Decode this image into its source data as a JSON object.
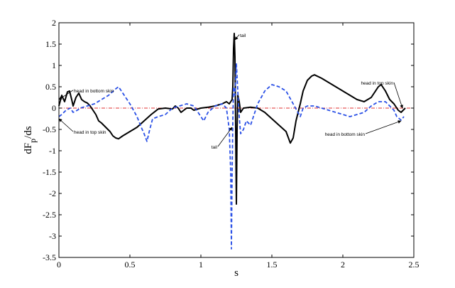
{
  "chart_data": {
    "type": "line",
    "title": "",
    "xlabel": "s",
    "ylabel_main": "dF",
    "ylabel_sub": "p",
    "ylabel_tail": "/ds",
    "xlim": [
      0,
      2.5
    ],
    "ylim": [
      -3.5,
      2
    ],
    "x_ticks": [
      0,
      0.5,
      1,
      1.5,
      2,
      2.5
    ],
    "x_tick_labels": [
      "0",
      "0.5",
      "1",
      "1.5",
      "2",
      "2.5"
    ],
    "y_ticks": [
      2,
      1.5,
      1,
      0.5,
      0,
      -0.5,
      -1,
      -1.5,
      -2,
      -2.5,
      -3,
      -3.5
    ],
    "y_tick_labels": [
      "2",
      "1.5",
      "1",
      "0.5",
      "0",
      "-0.5",
      "-1",
      "-1.5",
      "-2",
      "-2.5",
      "-3",
      "-3.5"
    ],
    "grid": false,
    "reference_line": {
      "y": 0,
      "color": "#e03030",
      "style": "dash-dot"
    },
    "series": [
      {
        "color": "#000000",
        "style": "solid",
        "points": [
          [
            0.0,
            0.05
          ],
          [
            0.02,
            0.3
          ],
          [
            0.04,
            0.15
          ],
          [
            0.06,
            0.38
          ],
          [
            0.075,
            0.4
          ],
          [
            0.09,
            0.2
          ],
          [
            0.1,
            0.05
          ],
          [
            0.12,
            0.25
          ],
          [
            0.14,
            0.35
          ],
          [
            0.16,
            0.2
          ],
          [
            0.18,
            0.15
          ],
          [
            0.2,
            0.12
          ],
          [
            0.22,
            0.05
          ],
          [
            0.24,
            -0.05
          ],
          [
            0.26,
            -0.15
          ],
          [
            0.28,
            -0.3
          ],
          [
            0.3,
            -0.35
          ],
          [
            0.33,
            -0.45
          ],
          [
            0.36,
            -0.55
          ],
          [
            0.38,
            -0.65
          ],
          [
            0.4,
            -0.7
          ],
          [
            0.42,
            -0.72
          ],
          [
            0.45,
            -0.65
          ],
          [
            0.5,
            -0.55
          ],
          [
            0.55,
            -0.45
          ],
          [
            0.6,
            -0.3
          ],
          [
            0.65,
            -0.15
          ],
          [
            0.7,
            -0.02
          ],
          [
            0.75,
            0.0
          ],
          [
            0.8,
            -0.02
          ],
          [
            0.82,
            0.05
          ],
          [
            0.84,
            0.0
          ],
          [
            0.86,
            -0.1
          ],
          [
            0.88,
            -0.05
          ],
          [
            0.9,
            0.0
          ],
          [
            0.93,
            0.0
          ],
          [
            0.95,
            -0.05
          ],
          [
            1.0,
            0.0
          ],
          [
            1.05,
            0.02
          ],
          [
            1.1,
            0.05
          ],
          [
            1.15,
            0.1
          ],
          [
            1.18,
            0.15
          ],
          [
            1.2,
            0.1
          ],
          [
            1.22,
            0.2
          ],
          [
            1.225,
            0.5
          ],
          [
            1.23,
            1.4
          ],
          [
            1.235,
            1.75
          ],
          [
            1.24,
            1.2
          ],
          [
            1.245,
            -0.5
          ],
          [
            1.25,
            -2.25
          ],
          [
            1.255,
            -0.5
          ],
          [
            1.26,
            0.3
          ],
          [
            1.27,
            0.15
          ],
          [
            1.28,
            -0.1
          ],
          [
            1.3,
            0.0
          ],
          [
            1.35,
            0.02
          ],
          [
            1.4,
            0.0
          ],
          [
            1.45,
            -0.1
          ],
          [
            1.5,
            -0.25
          ],
          [
            1.55,
            -0.4
          ],
          [
            1.6,
            -0.55
          ],
          [
            1.63,
            -0.82
          ],
          [
            1.65,
            -0.7
          ],
          [
            1.67,
            -0.3
          ],
          [
            1.7,
            0.1
          ],
          [
            1.72,
            0.4
          ],
          [
            1.75,
            0.65
          ],
          [
            1.78,
            0.75
          ],
          [
            1.8,
            0.78
          ],
          [
            1.85,
            0.7
          ],
          [
            1.9,
            0.6
          ],
          [
            1.95,
            0.5
          ],
          [
            2.0,
            0.4
          ],
          [
            2.05,
            0.3
          ],
          [
            2.1,
            0.2
          ],
          [
            2.15,
            0.15
          ],
          [
            2.2,
            0.25
          ],
          [
            2.25,
            0.5
          ],
          [
            2.27,
            0.55
          ],
          [
            2.3,
            0.4
          ],
          [
            2.33,
            0.2
          ],
          [
            2.36,
            0.1
          ],
          [
            2.39,
            -0.05
          ],
          [
            2.41,
            -0.1
          ],
          [
            2.44,
            0.0
          ]
        ]
      },
      {
        "color": "#2a50e6",
        "style": "dashed",
        "points": [
          [
            0.0,
            -0.2
          ],
          [
            0.02,
            -0.15
          ],
          [
            0.05,
            -0.05
          ],
          [
            0.08,
            0.0
          ],
          [
            0.1,
            -0.1
          ],
          [
            0.13,
            -0.05
          ],
          [
            0.15,
            0.0
          ],
          [
            0.2,
            0.05
          ],
          [
            0.25,
            0.1
          ],
          [
            0.3,
            0.2
          ],
          [
            0.35,
            0.3
          ],
          [
            0.4,
            0.45
          ],
          [
            0.42,
            0.5
          ],
          [
            0.45,
            0.35
          ],
          [
            0.48,
            0.2
          ],
          [
            0.5,
            0.1
          ],
          [
            0.55,
            -0.2
          ],
          [
            0.58,
            -0.45
          ],
          [
            0.6,
            -0.6
          ],
          [
            0.62,
            -0.78
          ],
          [
            0.64,
            -0.5
          ],
          [
            0.66,
            -0.25
          ],
          [
            0.7,
            -0.2
          ],
          [
            0.75,
            -0.15
          ],
          [
            0.8,
            0.0
          ],
          [
            0.85,
            0.05
          ],
          [
            0.9,
            0.1
          ],
          [
            0.95,
            0.05
          ],
          [
            1.0,
            -0.2
          ],
          [
            1.02,
            -0.3
          ],
          [
            1.05,
            -0.1
          ],
          [
            1.1,
            0.05
          ],
          [
            1.15,
            0.1
          ],
          [
            1.18,
            0.0
          ],
          [
            1.2,
            -0.5
          ],
          [
            1.21,
            -1.5
          ],
          [
            1.215,
            -3.3
          ],
          [
            1.22,
            -1.5
          ],
          [
            1.225,
            -0.3
          ],
          [
            1.23,
            0.5
          ],
          [
            1.24,
            0.3
          ],
          [
            1.25,
            1.05
          ],
          [
            1.26,
            0.4
          ],
          [
            1.27,
            -0.2
          ],
          [
            1.28,
            -0.6
          ],
          [
            1.3,
            -0.5
          ],
          [
            1.32,
            -0.3
          ],
          [
            1.35,
            -0.4
          ],
          [
            1.37,
            -0.2
          ],
          [
            1.4,
            0.1
          ],
          [
            1.45,
            0.4
          ],
          [
            1.5,
            0.55
          ],
          [
            1.55,
            0.5
          ],
          [
            1.6,
            0.4
          ],
          [
            1.65,
            0.1
          ],
          [
            1.7,
            -0.2
          ],
          [
            1.72,
            0.0
          ],
          [
            1.75,
            0.05
          ],
          [
            1.8,
            0.05
          ],
          [
            1.85,
            0.0
          ],
          [
            1.9,
            -0.05
          ],
          [
            1.95,
            -0.1
          ],
          [
            2.0,
            -0.15
          ],
          [
            2.05,
            -0.2
          ],
          [
            2.1,
            -0.15
          ],
          [
            2.15,
            -0.1
          ],
          [
            2.2,
            0.05
          ],
          [
            2.25,
            0.15
          ],
          [
            2.3,
            0.15
          ],
          [
            2.33,
            0.05
          ],
          [
            2.36,
            -0.05
          ],
          [
            2.38,
            -0.2
          ],
          [
            2.41,
            -0.28
          ],
          [
            2.43,
            -0.2
          ]
        ]
      }
    ],
    "annotations": [
      {
        "text": "head in bottom skin",
        "tx": 0.1,
        "ty": 0.42,
        "ax": 0.0,
        "ay": 0.2
      },
      {
        "text": "head in top skin",
        "tx": 0.1,
        "ty": -0.55,
        "ax": 0.0,
        "ay": -0.25
      },
      {
        "text": "tail",
        "tx": 1.27,
        "ty": 1.72,
        "ax": 1.24,
        "ay": 1.6
      },
      {
        "text": "tail",
        "tx": 1.12,
        "ty": -0.9,
        "ax": 1.22,
        "ay": -0.45
      },
      {
        "text": "head in top skin",
        "tx": 2.36,
        "ty": 0.6,
        "ax": 2.42,
        "ay": 0.0
      },
      {
        "text": "head in bottom skin",
        "tx": 2.16,
        "ty": -0.6,
        "ax": 2.41,
        "ay": -0.3
      }
    ]
  }
}
